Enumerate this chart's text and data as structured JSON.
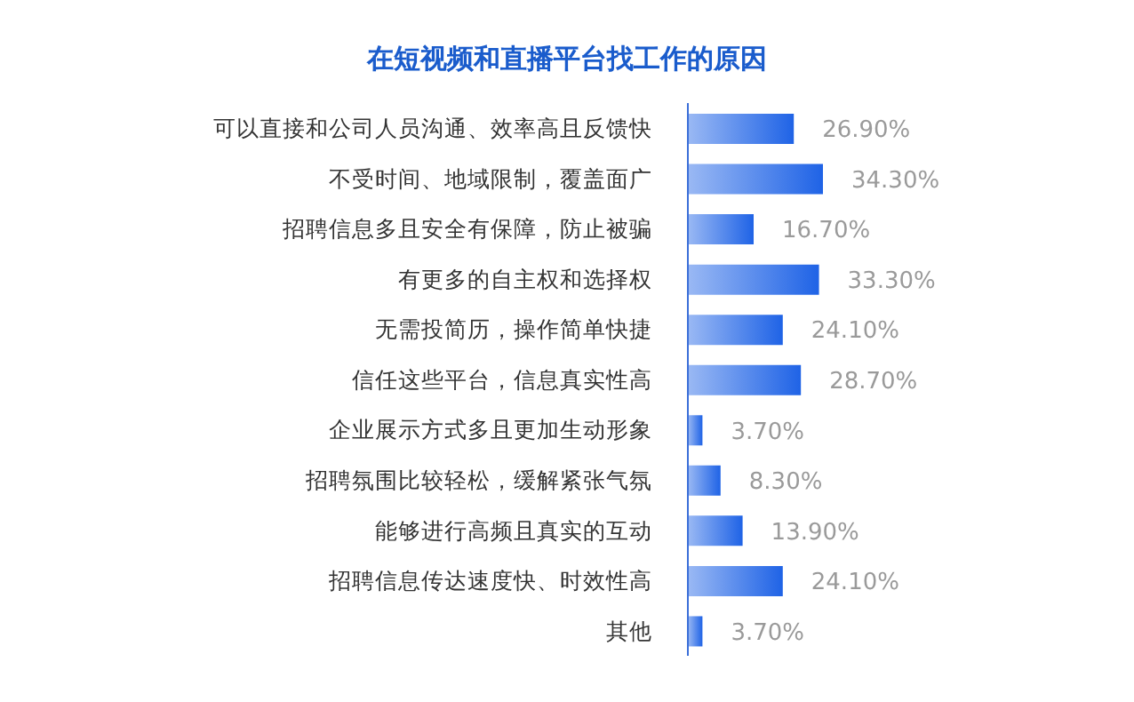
{
  "chart_data": {
    "type": "bar",
    "orientation": "horizontal",
    "title": "在短视频和直播平台找工作的原因",
    "categories": [
      "可以直接和公司人员沟通、效率高且反馈快",
      "不受时间、地域限制，覆盖面广",
      "招聘信息多且安全有保障，防止被骗",
      "有更多的自主权和选择权",
      "无需投简历，操作简单快捷",
      "信任这些平台，信息真实性高",
      "企业展示方式多且更加生动形象",
      "招聘氛围比较轻松，缓解紧张气氛",
      "能够进行高频且真实的互动",
      "招聘信息传达速度快、时效性高",
      "其他"
    ],
    "values": [
      26.9,
      34.3,
      16.7,
      33.3,
      24.1,
      28.7,
      3.7,
      8.3,
      13.9,
      24.1,
      3.7
    ],
    "value_labels": [
      "26.90%",
      "34.30%",
      "16.70%",
      "33.30%",
      "24.10%",
      "28.70%",
      "3.70%",
      "8.30%",
      "13.90%",
      "24.10%",
      "3.70%"
    ],
    "color": "#1f63e6",
    "tick_labels": "y"
  }
}
